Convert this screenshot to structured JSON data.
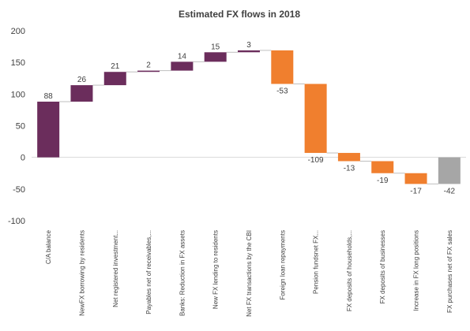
{
  "chart_data": {
    "type": "bar",
    "subtype": "waterfall",
    "title": "Estimated FX flows in 2018",
    "xlabel": "",
    "ylabel": "",
    "ylim": [
      -100,
      200
    ],
    "yticks": [
      -100,
      -50,
      0,
      50,
      100,
      150,
      200
    ],
    "grid": false,
    "legend": "none",
    "categories": [
      "C/A balance",
      "NewFX borrowing by residents",
      "Net registered investment...",
      "Payables net of receivables,...",
      "Banks: Reduction in FX assets",
      "New FX lending to residents",
      "Net FX transactions by the CBI",
      "Foreign loan repayments",
      "Pension fundsnet FX...",
      "FX deposits of households,...",
      "FX deposits of businesses",
      "Increase in FX long positions",
      "FX purchases net of FX sales"
    ],
    "values": [
      88,
      26,
      21,
      2,
      14,
      15,
      3,
      -53,
      -109,
      -13,
      -19,
      -17,
      -42
    ],
    "kinds": [
      "start",
      "inflow",
      "inflow",
      "inflow",
      "inflow",
      "inflow",
      "inflow",
      "outflow",
      "outflow",
      "outflow",
      "outflow",
      "outflow",
      "total"
    ],
    "colors": {
      "start": "#6b2d5c",
      "inflow": "#6b2d5c",
      "outflow": "#f07f2e",
      "total": "#a6a6a6",
      "connector": "#bfbfbf",
      "axis": "#d9d9d9",
      "text": "#404040"
    }
  }
}
